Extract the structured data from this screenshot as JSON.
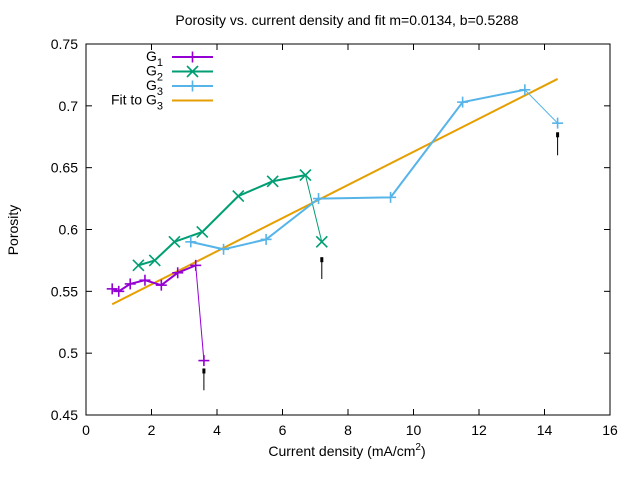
{
  "chart_data": {
    "type": "line",
    "title": "Porosity vs. current density and fit m=0.0134, b=0.5288",
    "xlabel": "Current density (mA/cm",
    "xlabel_sup": "2",
    "xlabel_end": ")",
    "ylabel": "Porosity",
    "xlim": [
      0,
      16
    ],
    "ylim": [
      0.45,
      0.75
    ],
    "xticks": [
      0,
      2,
      4,
      6,
      8,
      10,
      12,
      14,
      16
    ],
    "yticks": [
      0.45,
      0.5,
      0.55,
      0.6,
      0.65,
      0.7,
      0.75
    ],
    "legend_position": "top-left",
    "series": [
      {
        "name": "G",
        "sub": "1",
        "color": "#9400d3",
        "marker": "plus",
        "x": [
          0.8,
          1.0,
          1.35,
          1.8,
          2.3,
          2.8,
          3.35
        ],
        "y": [
          0.552,
          0.55,
          0.556,
          0.559,
          0.555,
          0.565,
          0.571
        ],
        "outlier": {
          "x": 3.6,
          "y": 0.494
        }
      },
      {
        "name": "G",
        "sub": "2",
        "color": "#009e73",
        "marker": "cross",
        "x": [
          1.6,
          2.1,
          2.7,
          3.55,
          4.65,
          5.7,
          6.7
        ],
        "y": [
          0.571,
          0.575,
          0.59,
          0.598,
          0.627,
          0.639,
          0.644
        ],
        "outlier": {
          "x": 7.2,
          "y": 0.59
        }
      },
      {
        "name": "G",
        "sub": "3",
        "color": "#56b4e9",
        "marker": "plus",
        "x": [
          3.2,
          4.2,
          5.5,
          7.1,
          9.3,
          11.5,
          13.4
        ],
        "y": [
          0.59,
          0.584,
          0.592,
          0.625,
          0.626,
          0.703,
          0.713
        ],
        "outlier": {
          "x": 14.4,
          "y": 0.686
        }
      }
    ],
    "fit": {
      "name": "Fit to G",
      "sub": "3",
      "color": "#e69f00",
      "m": 0.0134,
      "b": 0.5288,
      "x_range": [
        0.8,
        14.4
      ]
    },
    "markers": [
      {
        "x": 3.6,
        "y_top": 0.486,
        "y_bottom": 0.47
      },
      {
        "x": 7.2,
        "y_top": 0.576,
        "y_bottom": 0.56
      },
      {
        "x": 14.4,
        "y_top": 0.677,
        "y_bottom": 0.66
      }
    ]
  }
}
